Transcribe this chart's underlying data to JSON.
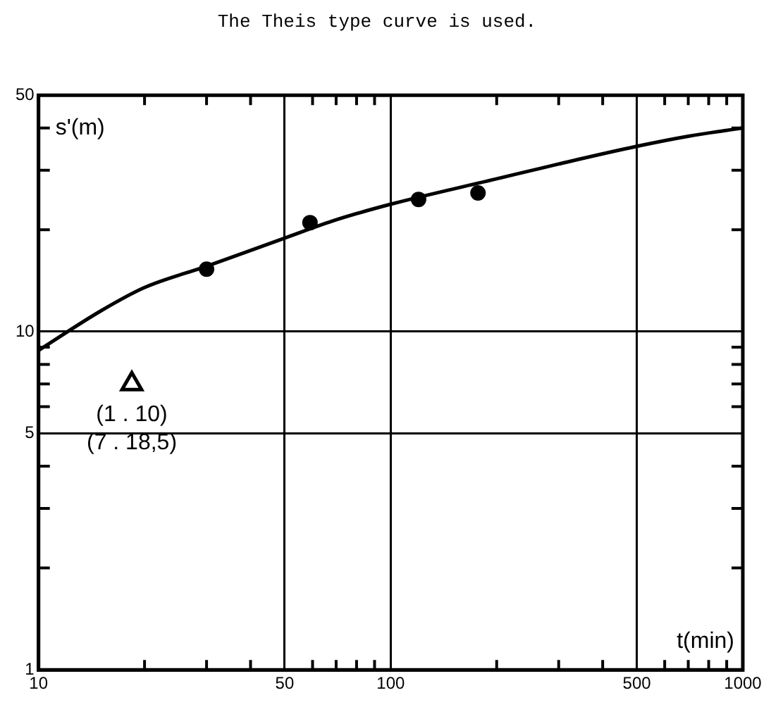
{
  "chart_data": {
    "type": "line",
    "title": "The Theis type curve is used.",
    "xlabel": "t(min)",
    "ylabel": "s'(m)",
    "log": "xy",
    "grid": true,
    "legend": false,
    "xlim": [
      10,
      1000
    ],
    "xticks": [
      10,
      {
        "value": 20,
        "label": null
      },
      {
        "value": 30,
        "label": null
      },
      {
        "value": 40,
        "label": null
      },
      50,
      {
        "value": 60,
        "label": null
      },
      {
        "value": 70,
        "label": null
      },
      {
        "value": 80,
        "label": null
      },
      {
        "value": 90,
        "label": null
      },
      100,
      {
        "value": 200,
        "label": null
      },
      {
        "value": 300,
        "label": null
      },
      {
        "value": 400,
        "label": null
      },
      500,
      {
        "value": 600,
        "label": null
      },
      {
        "value": 700,
        "label": null
      },
      {
        "value": 800,
        "label": null
      },
      {
        "value": 900,
        "label": null
      },
      1000
    ],
    "ylim": [
      1,
      50
    ],
    "yticks": [
      1,
      {
        "value": 2,
        "label": null
      },
      {
        "value": 3,
        "label": null
      },
      {
        "value": 4,
        "label": null
      },
      5,
      {
        "value": 6,
        "label": null
      },
      {
        "value": 7,
        "label": null
      },
      {
        "value": 8,
        "label": null
      },
      {
        "value": 9,
        "label": null
      },
      10,
      {
        "value": 20,
        "label": null
      },
      {
        "value": 30,
        "label": null
      },
      {
        "value": 40,
        "label": null
      },
      50
    ],
    "series": [
      {
        "type": "line",
        "color": "#000000",
        "marker": "none",
        "line_style": "solid",
        "x": [
          10,
          15,
          20,
          30,
          50,
          70,
          100,
          200,
          300,
          500,
          700,
          1000
        ],
        "values": [
          8.8,
          11.5,
          13.5,
          15.6,
          18.9,
          21.4,
          23.8,
          28.3,
          31.3,
          35.3,
          37.8,
          40
        ]
      },
      {
        "type": "scatter",
        "color": "#000000",
        "marker": "circle",
        "x": [
          30,
          59,
          120,
          177
        ],
        "values": [
          15.3,
          21,
          24.6,
          25.7
        ]
      },
      {
        "type": "scatter",
        "color": "#000000",
        "marker": "triangle",
        "x": [
          18.4
        ],
        "values": [
          7.0
        ]
      }
    ],
    "annotations": [
      {
        "text": "(1 . 10)",
        "x": 18.4,
        "y": 7.0
      },
      {
        "text": "(7 . 18,5)",
        "x": 18.4,
        "y": 7.0
      }
    ]
  }
}
